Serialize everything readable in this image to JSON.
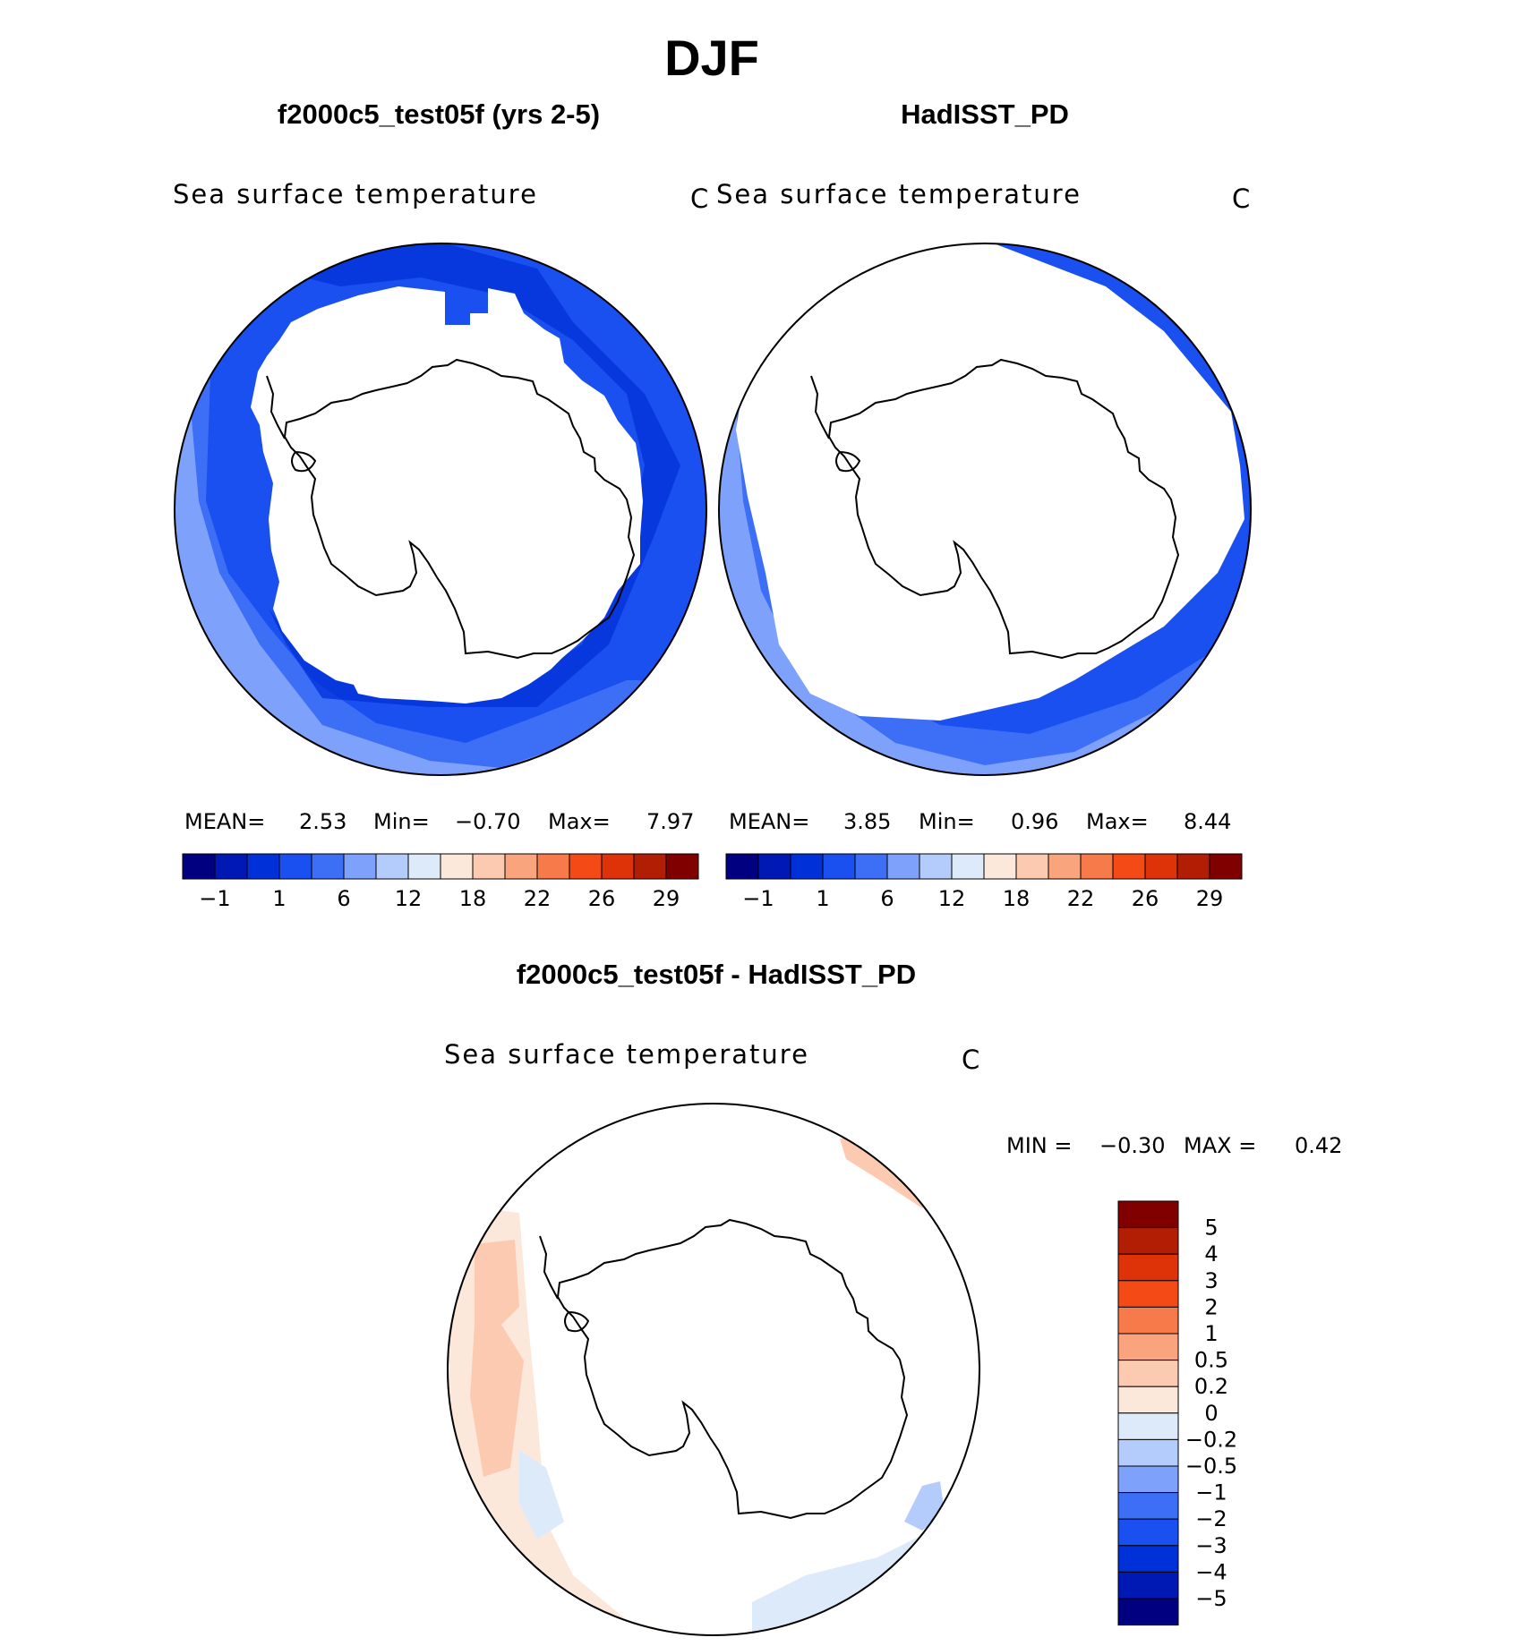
{
  "figure": {
    "title": "DJF"
  },
  "chart_data": [
    {
      "type": "heatmap",
      "projection": "south-polar-stereographic",
      "panel_title": "f2000c5_test05f (yrs 2-5)",
      "variable": "Sea surface temperature",
      "units": "C",
      "stats": {
        "mean_label": "MEAN=",
        "mean": "2.53",
        "min_label": "Min=",
        "min": "−0.70",
        "max_label": "Max=",
        "max": "7.97"
      },
      "colorbar_ticks": [
        "−1",
        "1",
        "6",
        "12",
        "18",
        "22",
        "26",
        "29"
      ]
    },
    {
      "type": "heatmap",
      "projection": "south-polar-stereographic",
      "panel_title": "HadISST_PD",
      "variable": "Sea surface temperature",
      "units": "C",
      "stats": {
        "mean_label": "MEAN=",
        "mean": "3.85",
        "min_label": "Min=",
        "min": "0.96",
        "max_label": "Max=",
        "max": "8.44"
      },
      "colorbar_ticks": [
        "−1",
        "1",
        "6",
        "12",
        "18",
        "22",
        "26",
        "29"
      ]
    },
    {
      "type": "heatmap",
      "projection": "south-polar-stereographic",
      "panel_title": "f2000c5_test05f - HadISST_PD",
      "variable": "Sea surface temperature",
      "units": "C",
      "stats": {
        "min_label": "MIN =",
        "min": "−0.30",
        "max_label": "MAX =",
        "max": "0.42"
      },
      "colorbar_ticks": [
        "5",
        "4",
        "3",
        "2",
        "1",
        "0.5",
        "0.2",
        "0",
        "−0.2",
        "−0.5",
        "−1",
        "−2",
        "−3",
        "−4",
        "−5"
      ]
    }
  ],
  "colors": {
    "sst_scale": [
      "#000080",
      "#0018b4",
      "#0030d8",
      "#1a4ff0",
      "#3c6ef6",
      "#7ea2fb",
      "#b4ccfb",
      "#ddeaf9",
      "#fce8da",
      "#fccab0",
      "#f9a47c",
      "#f67a4a",
      "#f34a16",
      "#de3208",
      "#b21e04",
      "#800000"
    ],
    "diff_scale": [
      "#800000",
      "#b21e04",
      "#de3208",
      "#f34a16",
      "#f67a4a",
      "#f9a47c",
      "#fccab0",
      "#fce8da",
      "#ddeaf9",
      "#b4ccfb",
      "#7ea2fb",
      "#3c6ef6",
      "#1a4ff0",
      "#0030d8",
      "#0018b4",
      "#000080"
    ]
  }
}
